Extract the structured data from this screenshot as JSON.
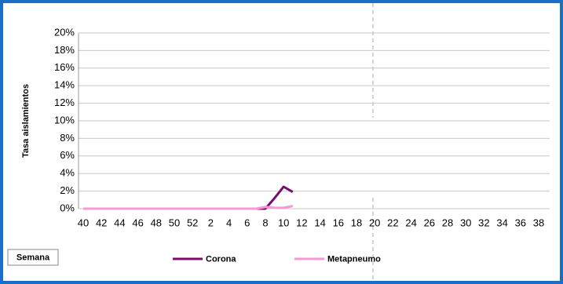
{
  "chart_data": {
    "type": "line",
    "y_label": "Tasa aislamientos",
    "x_label": "Semana",
    "categories": [
      "40",
      null,
      "42",
      null,
      "44",
      null,
      "46",
      null,
      "48",
      null,
      "50",
      null,
      "52",
      null,
      "2",
      null,
      "4",
      null,
      "6",
      null,
      "8",
      null,
      "10",
      null,
      "12",
      null,
      "14",
      null,
      "16",
      null,
      "18",
      null,
      "20",
      null,
      "22",
      null,
      "24",
      null,
      "26",
      null,
      "28",
      null,
      "30",
      null,
      "32",
      null,
      "34",
      null,
      "36",
      null,
      "38",
      null
    ],
    "series": [
      {
        "name": "Corona",
        "color": "#7a0c6e",
        "values": [
          0,
          0,
          0,
          0,
          0,
          0,
          0,
          0,
          0,
          0,
          0,
          0,
          0,
          0,
          0,
          0,
          0,
          0,
          0,
          0,
          0,
          1.2,
          2.5,
          1.9,
          null,
          null,
          null,
          null,
          null,
          null,
          null,
          null,
          null,
          null,
          null,
          null,
          null,
          null,
          null,
          null,
          null,
          null,
          null,
          null,
          null,
          null,
          null,
          null,
          null,
          null,
          null,
          null
        ]
      },
      {
        "name": "Metapneumo",
        "color": "#f59ad3",
        "values": [
          0,
          0,
          0,
          0,
          0,
          0,
          0,
          0,
          0,
          0,
          0,
          0,
          0,
          0,
          0,
          0,
          0,
          0,
          0,
          0,
          0.2,
          0.1,
          0.1,
          0.3,
          null,
          null,
          null,
          null,
          null,
          null,
          null,
          null,
          null,
          null,
          null,
          null,
          null,
          null,
          null,
          null,
          null,
          null,
          null,
          null,
          null,
          null,
          null,
          null,
          null,
          null,
          null,
          null
        ]
      }
    ],
    "ylim": [
      0,
      20
    ],
    "yticks": [
      {
        "value": 0,
        "label": "0%"
      },
      {
        "value": 2,
        "label": "2%"
      },
      {
        "value": 4,
        "label": "4%"
      },
      {
        "value": 6,
        "label": "6%"
      },
      {
        "value": 8,
        "label": "8%"
      },
      {
        "value": 10,
        "label": "10%"
      },
      {
        "value": 12,
        "label": "12%"
      },
      {
        "value": 14,
        "label": "14%"
      },
      {
        "value": 16,
        "label": "16%"
      },
      {
        "value": 18,
        "label": "18%"
      },
      {
        "value": 20,
        "label": "20%"
      }
    ],
    "grid": true
  }
}
